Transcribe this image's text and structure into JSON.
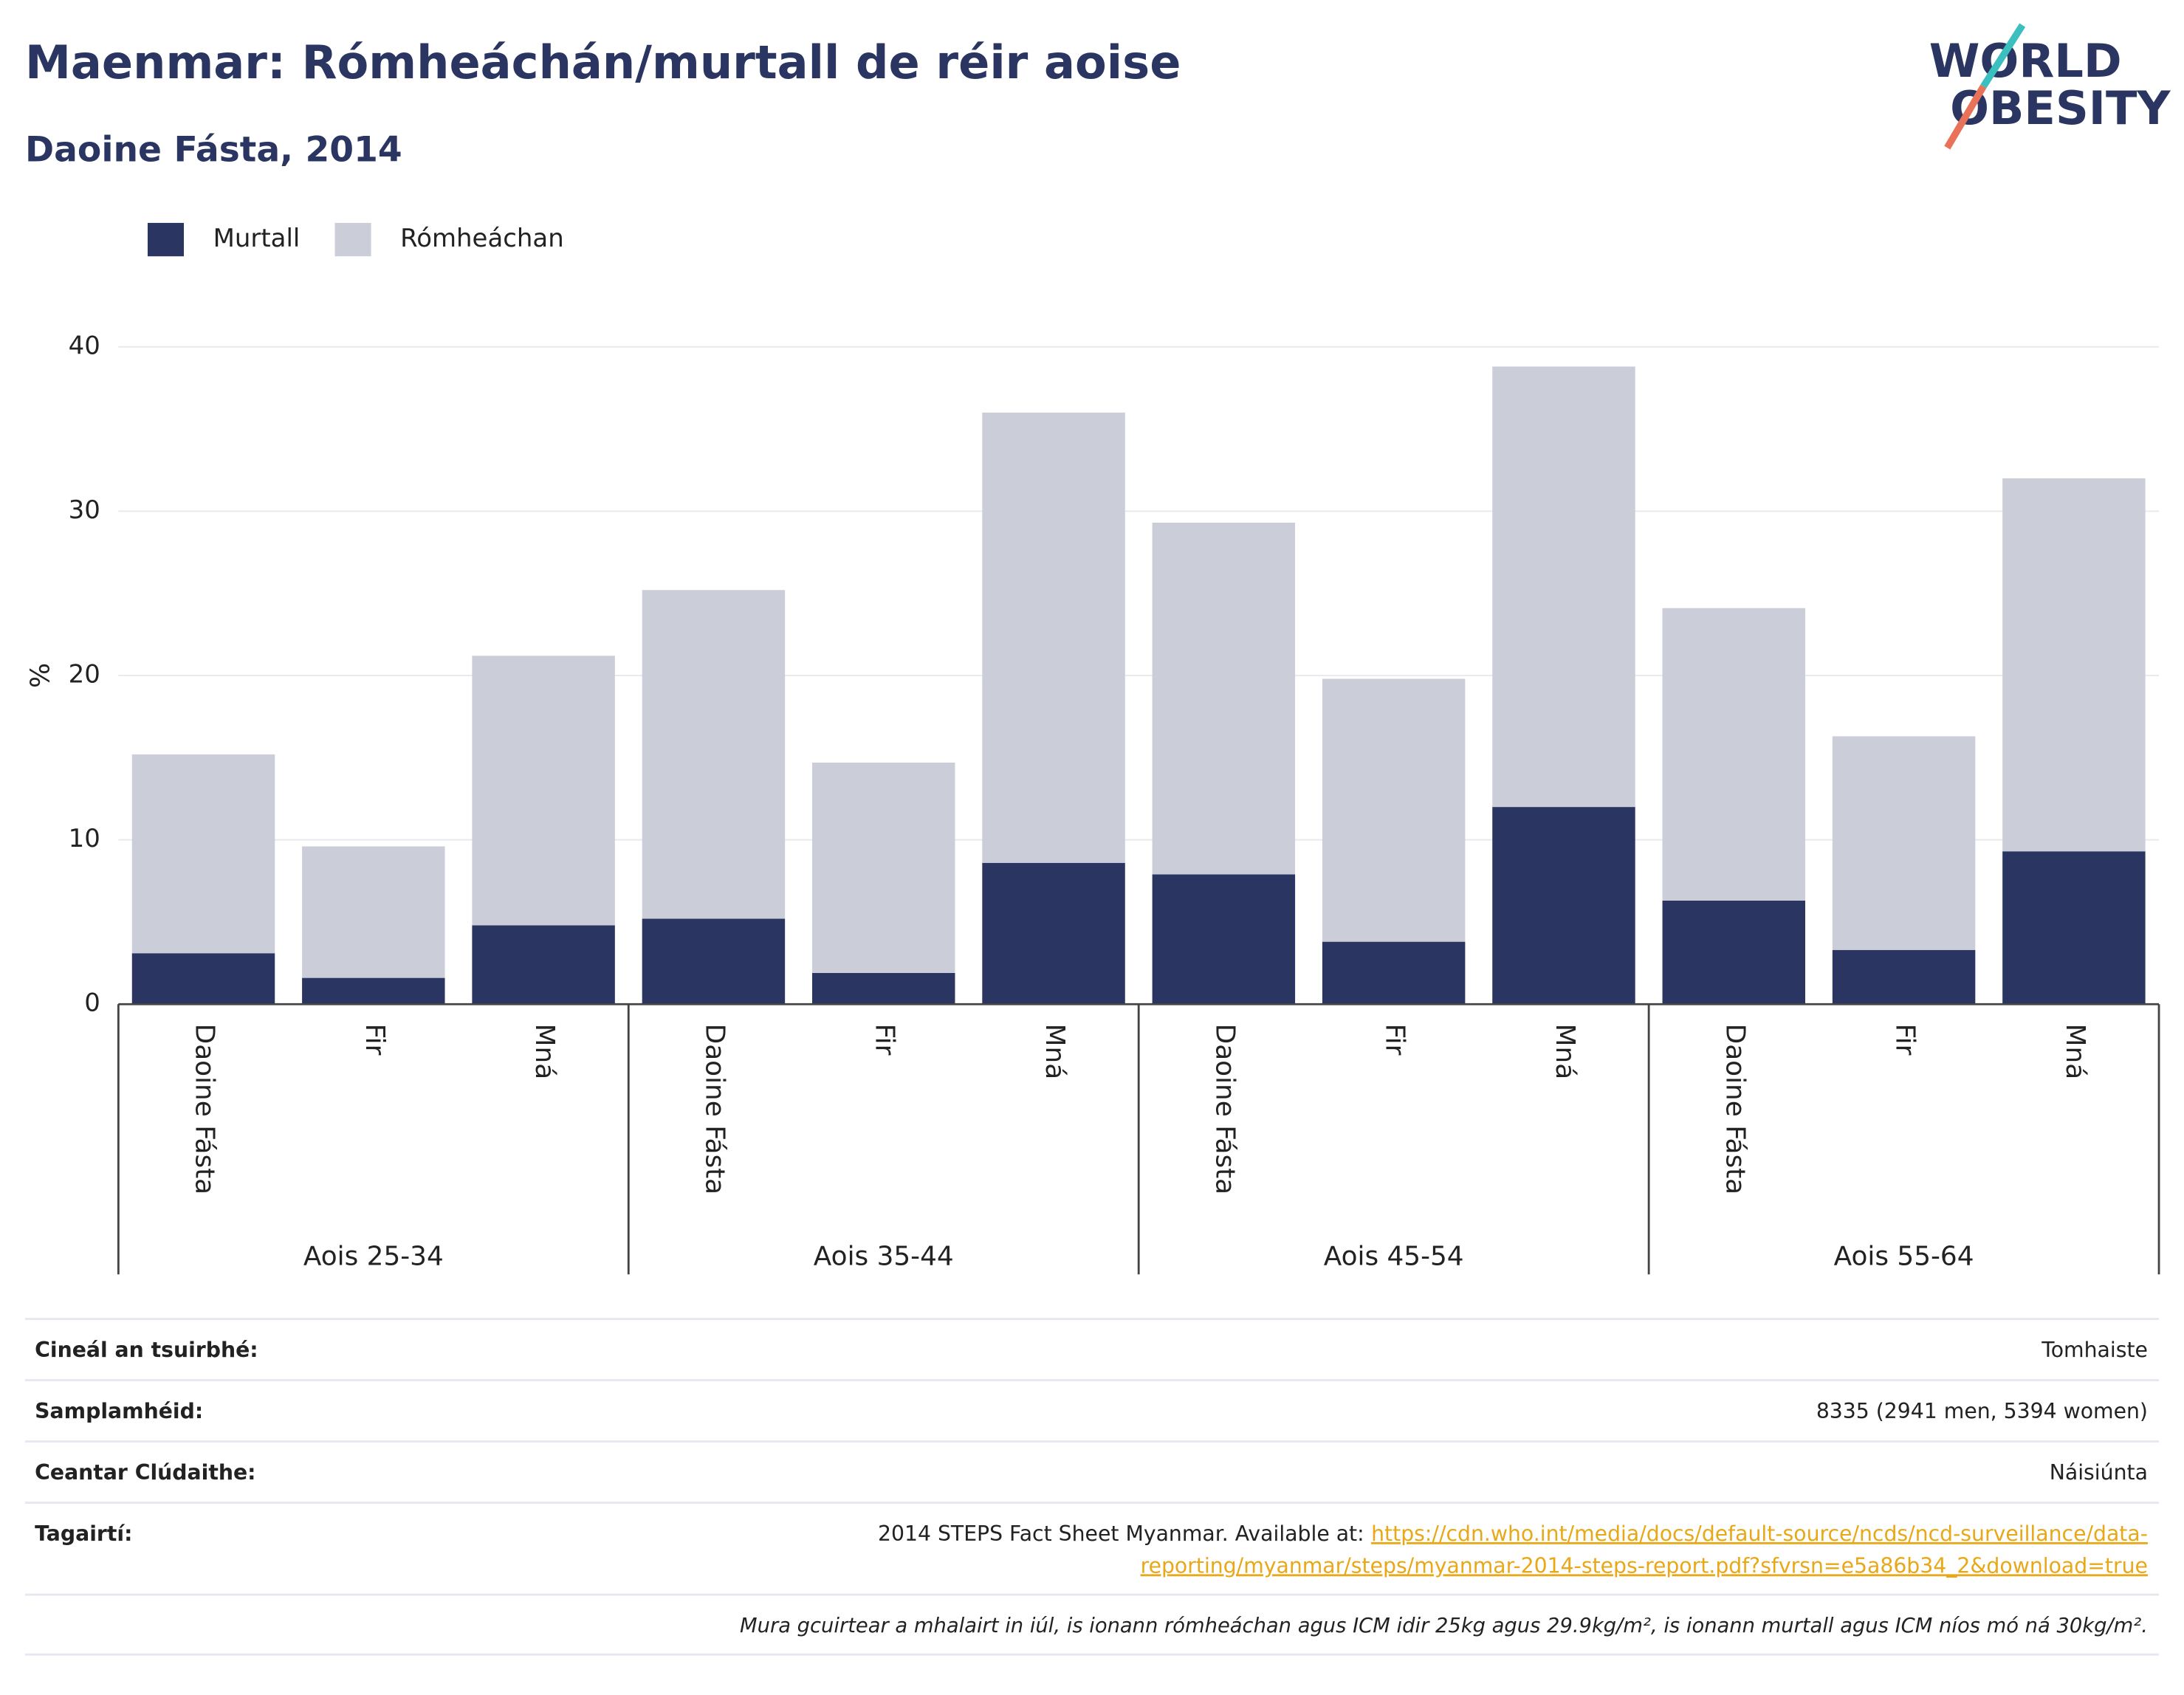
{
  "chart_data": {
    "type": "stacked_bar",
    "title": "Maenmar: Rómheáchán/murtall de réir aoise",
    "subtitle": "Daoine Fásta, 2014",
    "logo": [
      "WORLD",
      "OBESITY"
    ],
    "y_label": "%",
    "categories": [
      "Daoine Fásta",
      "Fir",
      "Mná",
      "Daoine Fásta",
      "Fir",
      "Mná",
      "Daoine Fásta",
      "Fir",
      "Mná",
      "Daoine Fásta",
      "Fir",
      "Mná"
    ],
    "groups": [
      "Aois 25-34",
      "Aois 35-44",
      "Aois 45-54",
      "Aois 55-64"
    ],
    "series": [
      {
        "name": "Murtall",
        "color": "#2a3561",
        "values": [
          3.1,
          1.6,
          4.8,
          5.2,
          1.9,
          8.6,
          7.9,
          3.8,
          12.0,
          6.3,
          3.3,
          9.3
        ]
      },
      {
        "name": "Rómheáchan",
        "color": "#cbcdd8",
        "values": [
          12.1,
          8.0,
          16.4,
          20.0,
          12.8,
          27.4,
          21.4,
          16.0,
          26.8,
          17.8,
          13.0,
          22.7
        ]
      }
    ],
    "ylim": [
      0,
      40
    ],
    "yticks": [
      0,
      10,
      20,
      30,
      40
    ],
    "grid": true,
    "legend": "top-left"
  },
  "info_table": {
    "rows": [
      [
        "Cineál an tsuirbhé:",
        "Tomhaiste"
      ],
      [
        "Samplamhéid:",
        "8335 (2941 men, 5394 women)"
      ],
      [
        "Ceantar Clúdaithe:",
        "Náisiúnta"
      ]
    ],
    "reference_label": "Tagairtí:",
    "reference_text": "2014 STEPS Fact Sheet Myanmar. Available at:",
    "reference_link": [
      "https://cdn.who.int/media/docs/default-source/ncds/ncd-surveillance/data-",
      "reporting/myanmar/steps/myanmar-2014-steps-report.pdf?sfvrsn=e5a86b34_2&download=true"
    ],
    "footnote": "Mura gcuirtear a mhalairt in iúl, is ionann rómheáchan agus ICM idir 25kg agus 29.9kg/m², is ionann murtall agus ICM níos mó ná 30kg/m²."
  }
}
